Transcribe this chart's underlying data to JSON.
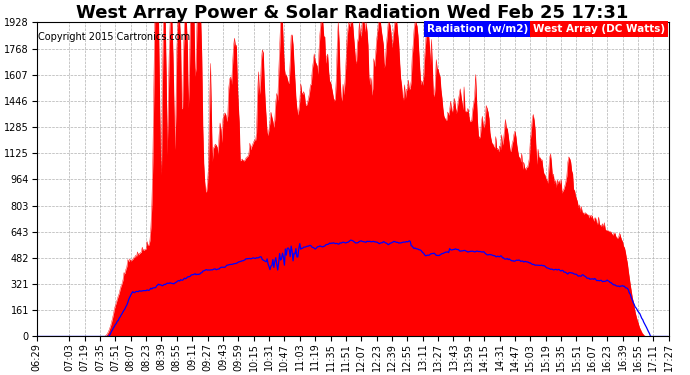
{
  "title": "West Array Power & Solar Radiation Wed Feb 25 17:31",
  "copyright": "Copyright 2015 Cartronics.com",
  "legend_radiation": "Radiation (w/m2)",
  "legend_west": "West Array (DC Watts)",
  "ymax": 1928.2,
  "yticks": [
    0.0,
    160.7,
    321.4,
    482.0,
    642.7,
    803.4,
    964.1,
    1124.8,
    1285.4,
    1446.1,
    1606.8,
    1767.5,
    1928.2
  ],
  "bg_color": "#ffffff",
  "grid_color": "#b0b0b0",
  "red_color": "#ff0000",
  "blue_color": "#0000ff",
  "title_fontsize": 13,
  "copyright_fontsize": 7,
  "tick_fontsize": 7,
  "legend_fontsize": 7.5,
  "xtick_labels": [
    "06:29",
    "07:03",
    "07:19",
    "07:35",
    "07:51",
    "08:07",
    "08:23",
    "08:39",
    "08:55",
    "09:11",
    "09:27",
    "09:43",
    "09:59",
    "10:15",
    "10:31",
    "10:47",
    "11:03",
    "11:19",
    "11:35",
    "11:51",
    "12:07",
    "12:23",
    "12:39",
    "12:55",
    "13:11",
    "13:27",
    "13:43",
    "13:59",
    "14:15",
    "14:31",
    "14:47",
    "15:03",
    "15:19",
    "15:35",
    "15:51",
    "16:07",
    "16:23",
    "16:39",
    "16:55",
    "17:11",
    "17:27"
  ]
}
